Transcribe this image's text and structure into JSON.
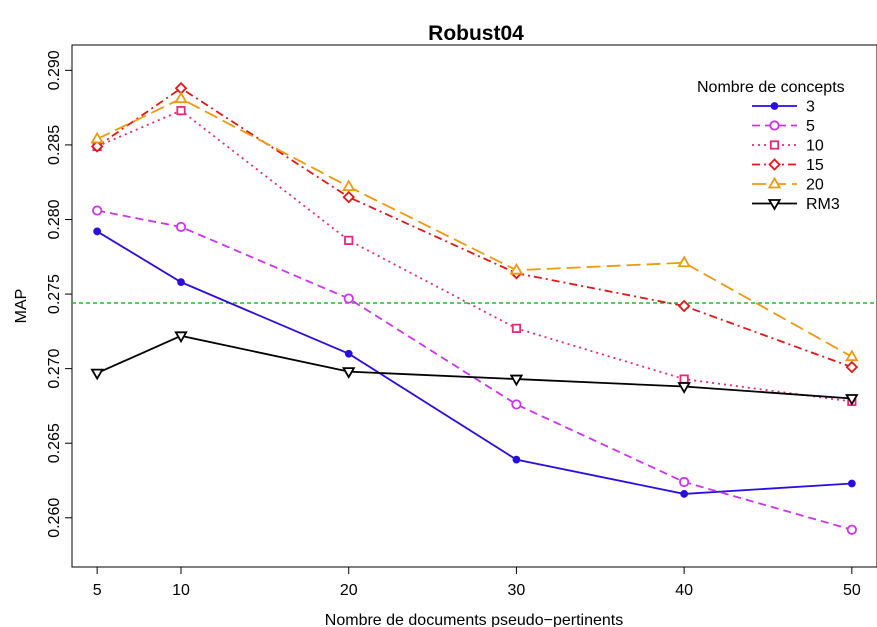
{
  "chart_data": {
    "type": "line",
    "title": "Robust04",
    "xlabel": "Nombre de documents pseudo−pertinents",
    "ylabel": "MAP",
    "x": [
      5,
      10,
      20,
      30,
      40,
      50
    ],
    "x_tick_labels": [
      "5",
      "10",
      "20",
      "30",
      "40",
      "50"
    ],
    "y_tick_values": [
      0.26,
      0.265,
      0.27,
      0.275,
      0.28,
      0.285,
      0.29
    ],
    "y_tick_labels": [
      "0.260",
      "0.265",
      "0.270",
      "0.275",
      "0.280",
      "0.285",
      "0.290"
    ],
    "xlim": [
      3.5,
      51.5
    ],
    "ylim": [
      0.2567,
      0.2917
    ],
    "grid": false,
    "legend": {
      "title": "Nombre de concepts",
      "position": "top-right"
    },
    "series": [
      {
        "name": "3",
        "values": [
          0.2792,
          0.2758,
          0.271,
          0.2639,
          0.2616,
          0.2623
        ],
        "color": "#2a0ee0",
        "dash": "",
        "marker": "dot"
      },
      {
        "name": "5",
        "values": [
          0.2806,
          0.2795,
          0.2747,
          0.2676,
          0.2624,
          0.2592
        ],
        "color": "#cc33ee",
        "dash": "8,5",
        "marker": "circle"
      },
      {
        "name": "10",
        "values": [
          0.2849,
          0.2873,
          0.2786,
          0.2727,
          0.2693,
          0.2678
        ],
        "color": "#e8287a",
        "dash": "2,4",
        "marker": "square"
      },
      {
        "name": "15",
        "values": [
          0.2849,
          0.2888,
          0.2815,
          0.2764,
          0.2742,
          0.2701
        ],
        "color": "#e01818",
        "dash": "8,4,2,4",
        "marker": "diamond"
      },
      {
        "name": "20",
        "values": [
          0.2854,
          0.2881,
          0.2822,
          0.2766,
          0.2771,
          0.2708
        ],
        "color": "#ee9a10",
        "dash": "14,6",
        "marker": "triangle"
      },
      {
        "name": "RM3",
        "values": [
          0.2697,
          0.2722,
          0.2698,
          0.2693,
          0.2688,
          0.268
        ],
        "color": "#000000",
        "dash": "",
        "marker": "triangle-down"
      }
    ],
    "reference_line": {
      "y": 0.2744,
      "color": "#22bb22",
      "dash": "4,3"
    }
  }
}
